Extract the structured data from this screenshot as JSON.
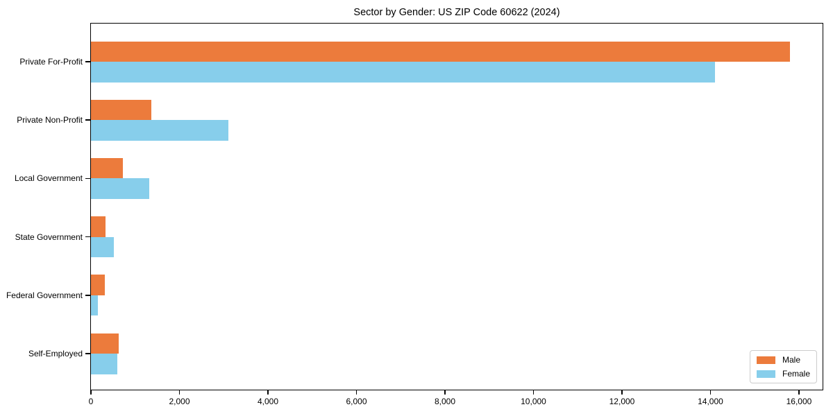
{
  "title": "Sector by Gender: US ZIP Code 60622 (2024)",
  "chart_data": {
    "type": "bar",
    "orientation": "horizontal",
    "title": "Sector by Gender: US ZIP Code 60622 (2024)",
    "categories": [
      "Private For-Profit",
      "Private Non-Profit",
      "Local Government",
      "State Government",
      "Federal Government",
      "Self-Employed"
    ],
    "series": [
      {
        "name": "Male",
        "color": "#ec7b3c",
        "values": [
          15800,
          1370,
          720,
          330,
          320,
          620
        ]
      },
      {
        "name": "Female",
        "color": "#87ceeb",
        "values": [
          14100,
          3100,
          1320,
          510,
          160,
          590
        ]
      }
    ],
    "xlabel": "",
    "ylabel": "",
    "xlim": [
      0,
      16565
    ],
    "xticks": [
      0,
      2000,
      4000,
      6000,
      8000,
      10000,
      12000,
      14000,
      16000
    ],
    "xtick_labels": [
      "0",
      "2,000",
      "4,000",
      "6,000",
      "8,000",
      "10,000",
      "12,000",
      "14,000",
      "16,000"
    ],
    "grid": false,
    "background": "#ffffff",
    "legend": {
      "position": "lower right",
      "entries": [
        "Male",
        "Female"
      ]
    }
  }
}
